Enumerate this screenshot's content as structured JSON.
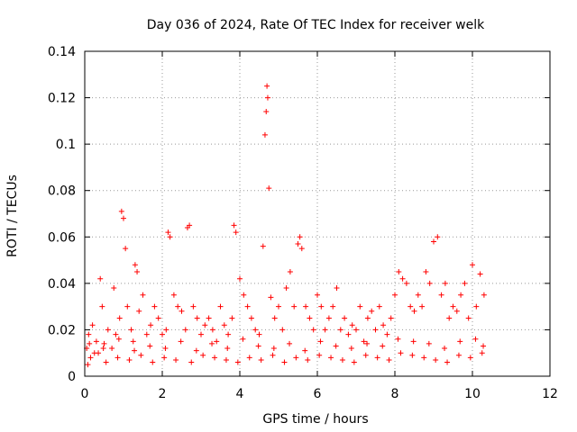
{
  "chart_data": {
    "type": "scatter",
    "title": "Day 036 of 2024, Rate Of TEC Index for receiver welk",
    "xlabel": "GPS time / hours",
    "ylabel": "ROTI / TECUs",
    "xlim": [
      0,
      12
    ],
    "ylim": [
      0,
      0.14
    ],
    "x_ticks": [
      0,
      2,
      4,
      6,
      8,
      10,
      12
    ],
    "x_tick_labels": [
      "0",
      "2",
      "4",
      "6",
      "8",
      "10",
      "12"
    ],
    "y_ticks": [
      0,
      0.02,
      0.04,
      0.06,
      0.08,
      0.1,
      0.12,
      0.14
    ],
    "y_tick_labels": [
      "0",
      "0.02",
      "0.04",
      "0.06",
      "0.08",
      "0.1",
      "0.12",
      "0.14"
    ],
    "grid": true,
    "marker": "plus",
    "series": [
      {
        "name": "ROTI",
        "color": "#ff0000",
        "x": [
          0.05,
          0.1,
          0.15,
          0.2,
          0.3,
          0.35,
          0.4,
          0.45,
          0.5,
          0.6,
          0.7,
          0.75,
          0.8,
          0.9,
          0.95,
          1.0,
          1.05,
          1.1,
          1.2,
          1.25,
          1.3,
          1.35,
          1.4,
          1.5,
          1.6,
          1.7,
          1.8,
          1.9,
          2.0,
          2.1,
          2.15,
          2.2,
          2.3,
          2.4,
          2.5,
          2.6,
          2.65,
          2.7,
          2.8,
          2.9,
          3.0,
          3.1,
          3.2,
          3.3,
          3.4,
          3.5,
          3.6,
          3.7,
          3.8,
          3.85,
          3.9,
          4.0,
          4.1,
          4.2,
          4.3,
          4.4,
          4.5,
          4.6,
          4.65,
          4.68,
          4.7,
          4.72,
          4.75,
          4.8,
          4.9,
          5.0,
          5.1,
          5.2,
          5.3,
          5.4,
          5.5,
          5.55,
          5.6,
          5.7,
          5.8,
          5.9,
          6.0,
          6.1,
          6.2,
          6.3,
          6.4,
          6.5,
          6.6,
          6.7,
          6.8,
          6.9,
          7.0,
          7.1,
          7.2,
          7.3,
          7.4,
          7.5,
          7.6,
          7.7,
          7.8,
          7.9,
          8.0,
          8.1,
          8.2,
          8.3,
          8.4,
          8.5,
          8.6,
          8.7,
          8.8,
          8.9,
          9.0,
          9.1,
          9.2,
          9.3,
          9.4,
          9.5,
          9.6,
          9.7,
          9.8,
          9.9,
          10.0,
          10.1,
          10.2,
          10.3,
          0.08,
          0.25,
          0.55,
          0.85,
          1.15,
          1.45,
          1.75,
          2.05,
          2.35,
          2.75,
          3.05,
          3.35,
          3.65,
          3.95,
          4.25,
          4.55,
          4.85,
          5.15,
          5.45,
          5.75,
          6.05,
          6.35,
          6.65,
          6.95,
          7.25,
          7.55,
          7.85,
          8.15,
          8.45,
          8.75,
          9.05,
          9.35,
          9.65,
          9.95,
          10.25,
          0.12,
          0.48,
          0.88,
          1.28,
          1.68,
          2.08,
          2.48,
          2.88,
          3.28,
          3.68,
          4.08,
          4.48,
          4.88,
          5.28,
          5.68,
          6.08,
          6.48,
          6.88,
          7.28,
          7.68,
          8.08,
          8.48,
          8.88,
          9.28,
          9.68,
          10.08,
          10.28
        ],
        "y": [
          0.012,
          0.018,
          0.008,
          0.022,
          0.015,
          0.01,
          0.042,
          0.03,
          0.014,
          0.02,
          0.012,
          0.038,
          0.018,
          0.025,
          0.071,
          0.068,
          0.055,
          0.03,
          0.02,
          0.015,
          0.048,
          0.045,
          0.028,
          0.035,
          0.018,
          0.022,
          0.03,
          0.025,
          0.018,
          0.02,
          0.062,
          0.06,
          0.035,
          0.03,
          0.028,
          0.02,
          0.064,
          0.065,
          0.03,
          0.025,
          0.018,
          0.022,
          0.025,
          0.02,
          0.015,
          0.03,
          0.022,
          0.018,
          0.025,
          0.065,
          0.062,
          0.042,
          0.035,
          0.03,
          0.025,
          0.02,
          0.018,
          0.056,
          0.104,
          0.114,
          0.125,
          0.12,
          0.081,
          0.034,
          0.025,
          0.03,
          0.02,
          0.038,
          0.045,
          0.03,
          0.057,
          0.06,
          0.055,
          0.03,
          0.025,
          0.02,
          0.035,
          0.03,
          0.02,
          0.025,
          0.03,
          0.038,
          0.02,
          0.025,
          0.018,
          0.022,
          0.02,
          0.03,
          0.015,
          0.025,
          0.028,
          0.02,
          0.03,
          0.022,
          0.018,
          0.025,
          0.035,
          0.045,
          0.042,
          0.04,
          0.03,
          0.028,
          0.035,
          0.03,
          0.045,
          0.04,
          0.058,
          0.06,
          0.035,
          0.04,
          0.025,
          0.03,
          0.028,
          0.035,
          0.04,
          0.025,
          0.048,
          0.03,
          0.044,
          0.035,
          0.005,
          0.01,
          0.006,
          0.008,
          0.007,
          0.009,
          0.006,
          0.008,
          0.007,
          0.006,
          0.009,
          0.008,
          0.007,
          0.006,
          0.008,
          0.007,
          0.009,
          0.006,
          0.008,
          0.007,
          0.009,
          0.008,
          0.007,
          0.006,
          0.009,
          0.008,
          0.007,
          0.01,
          0.009,
          0.008,
          0.007,
          0.006,
          0.009,
          0.008,
          0.01,
          0.014,
          0.012,
          0.016,
          0.011,
          0.013,
          0.012,
          0.015,
          0.011,
          0.014,
          0.012,
          0.016,
          0.013,
          0.012,
          0.014,
          0.011,
          0.015,
          0.013,
          0.012,
          0.014,
          0.013,
          0.016,
          0.015,
          0.014,
          0.012,
          0.015,
          0.016,
          0.013
        ]
      }
    ]
  }
}
